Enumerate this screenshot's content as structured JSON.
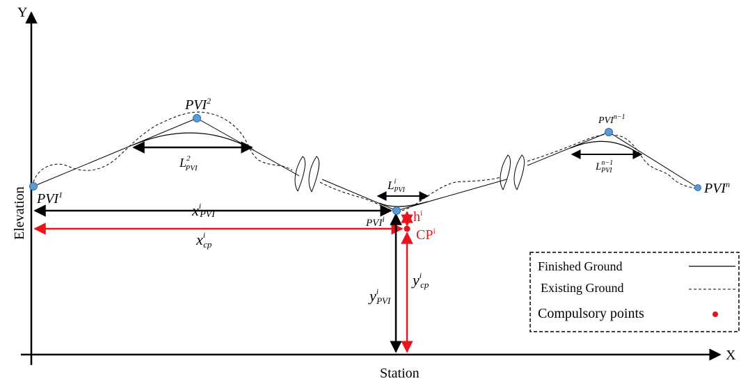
{
  "axes": {
    "y_label": "Y",
    "x_label": "X",
    "vertical_title": "Elevation",
    "horizontal_title": "Station"
  },
  "pvi_points": {
    "p1": {
      "base": "PVI",
      "sup": "1"
    },
    "p2": {
      "base": "PVI",
      "sup": "2"
    },
    "pi": {
      "base": "PVI",
      "sup": "i"
    },
    "pn1": {
      "base": "PVI",
      "sup": "n−1"
    },
    "pn": {
      "base": "PVI",
      "sup": "n"
    }
  },
  "curve_lengths": {
    "l2": {
      "base": "L",
      "sup": "2",
      "sub": "PVI"
    },
    "li": {
      "base": "L",
      "sup": "i",
      "sub": "PVI"
    },
    "ln1": {
      "base": "L",
      "sup": "n−1",
      "sub": "PVI"
    }
  },
  "dimensions": {
    "x_pvi": {
      "base": "x",
      "sup": "i",
      "sub": "PVI"
    },
    "x_cp": {
      "base": "x",
      "sup": "i",
      "sub": "cp"
    },
    "y_pvi": {
      "base": "y",
      "sup": "i",
      "sub": "PVI"
    },
    "y_cp": {
      "base": "y",
      "sup": "i",
      "sub": "cp"
    },
    "h": {
      "base": "h",
      "sup": "i"
    },
    "cp": {
      "base": "CP",
      "sup": "i"
    }
  },
  "legend": {
    "finished": "Finished Ground",
    "existing": "Existing Ground",
    "compulsory": "Compulsory points"
  },
  "colors": {
    "pvi_fill": "#5b9bd5",
    "pvi_stroke": "#2e6da4",
    "compulsory": "#e8141b",
    "line": "#000000"
  }
}
